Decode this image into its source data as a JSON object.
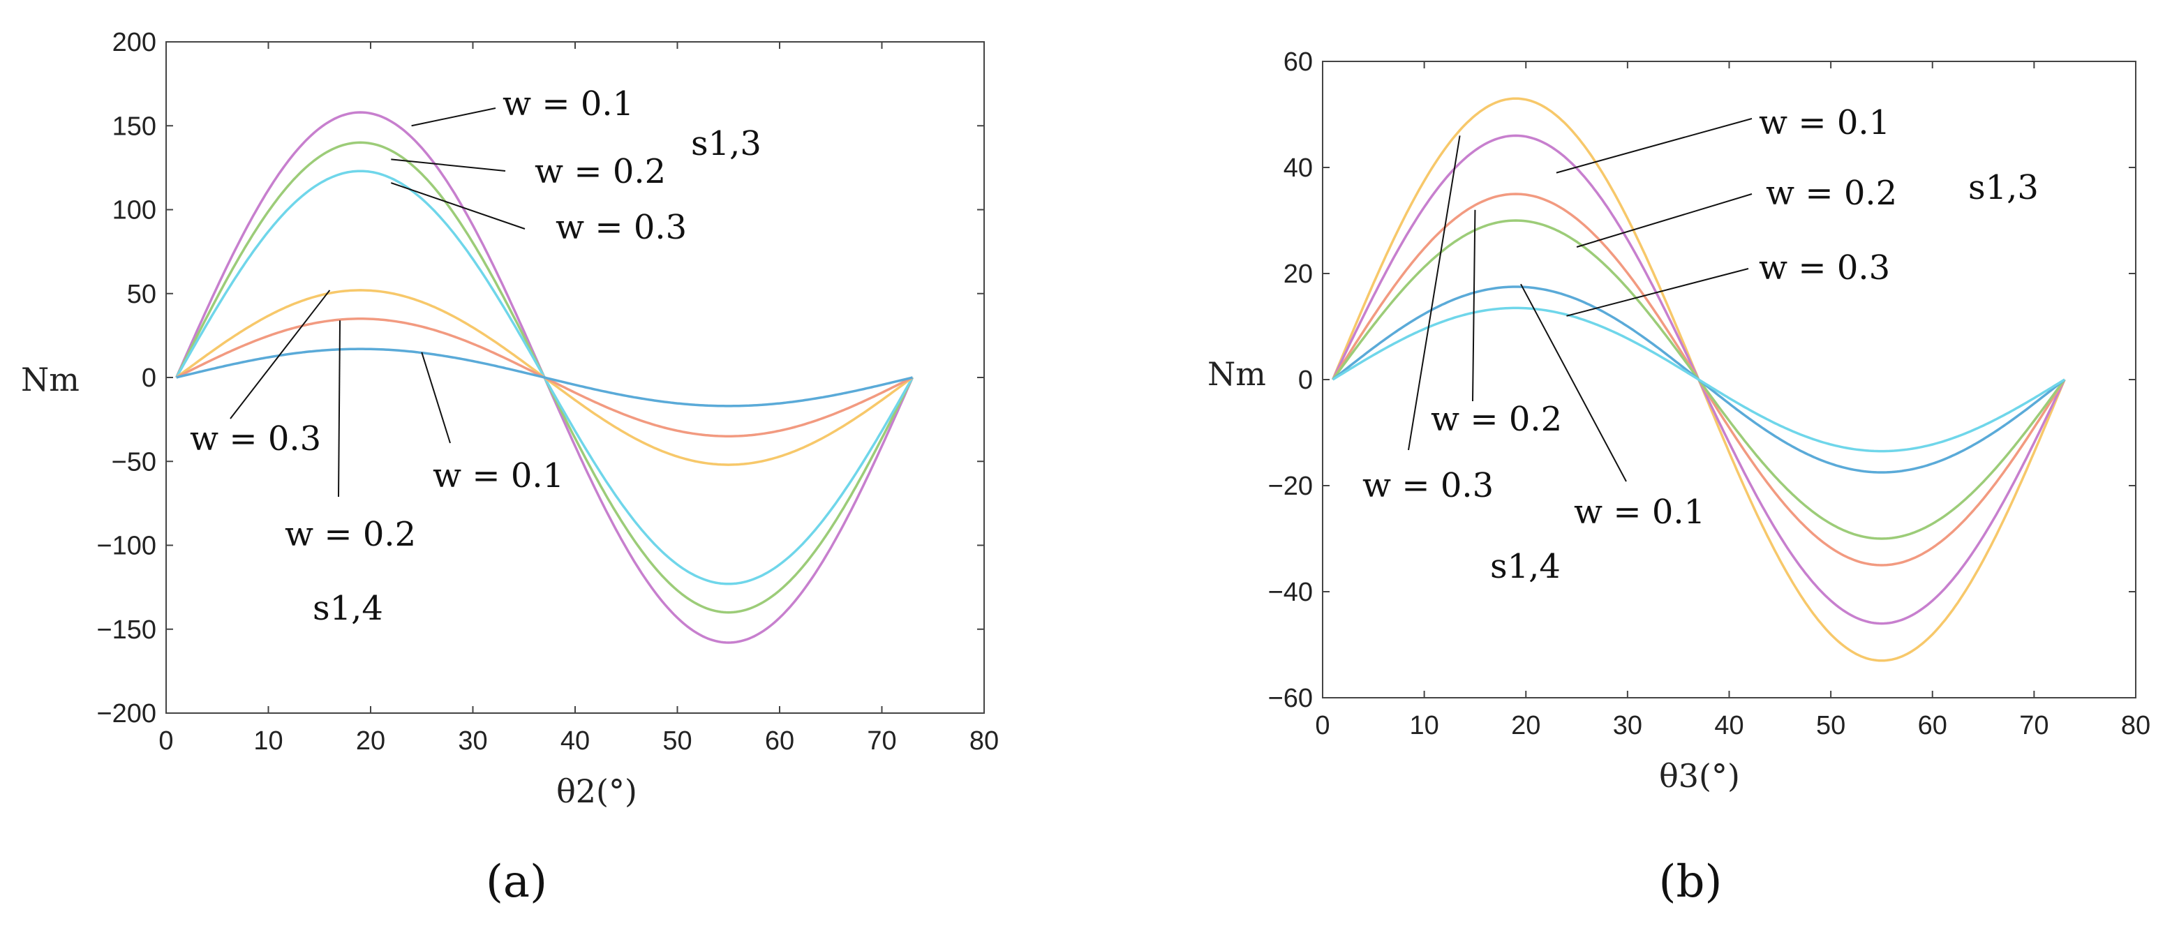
{
  "chart_data": [
    {
      "type": "line",
      "panel_label": "(a)",
      "xlabel": "θ2(°)",
      "ylabel": "Nm",
      "xlim": [
        0,
        80
      ],
      "ylim": [
        -200,
        200
      ],
      "x_ticks": [
        0,
        10,
        20,
        30,
        40,
        50,
        60,
        70,
        80
      ],
      "y_ticks": [
        200,
        150,
        100,
        50,
        0,
        -50,
        -100,
        -150,
        -200
      ],
      "x_tick_labels": [
        "0",
        "10",
        "20",
        "30",
        "40",
        "50",
        "60",
        "70",
        "80"
      ],
      "y_tick_labels": [
        "200",
        "150",
        "100",
        "50",
        "0",
        "−50",
        "−100",
        "−150",
        "−200"
      ],
      "x_range": [
        1,
        73
      ],
      "zero_cross": 37,
      "peak_x": 19,
      "trough_x": 55,
      "series": [
        {
          "name": "s1,3 w = 0.1",
          "amplitude": 158,
          "color": "#c77fce"
        },
        {
          "name": "s1,3 w = 0.2",
          "amplitude": 140,
          "color": "#9ccc78"
        },
        {
          "name": "s1,3 w = 0.3",
          "amplitude": 123,
          "color": "#6fd6ea"
        },
        {
          "name": "s1,4 w = 0.3",
          "amplitude": 52,
          "color": "#f7c86a"
        },
        {
          "name": "s1,4 w = 0.2",
          "amplitude": 35,
          "color": "#f29a80"
        },
        {
          "name": "s1,4 w = 0.1",
          "amplitude": 17,
          "color": "#5aaad8"
        }
      ],
      "annotations": [
        {
          "text": "w = 0.1",
          "group": "s1,3"
        },
        {
          "text": "w = 0.2",
          "group": "s1,3"
        },
        {
          "text": "w = 0.3",
          "group": "s1,3"
        },
        {
          "text": "w = 0.3",
          "group": "s1,4"
        },
        {
          "text": "w = 0.1",
          "group": "s1,4"
        },
        {
          "text": "w = 0.2",
          "group": "s1,4"
        }
      ],
      "group_labels": [
        "s1,3",
        "s1,4"
      ]
    },
    {
      "type": "line",
      "panel_label": "(b)",
      "xlabel": "θ3(°)",
      "ylabel": "Nm",
      "xlim": [
        0,
        80
      ],
      "ylim": [
        -60,
        60
      ],
      "x_ticks": [
        0,
        10,
        20,
        30,
        40,
        50,
        60,
        70,
        80
      ],
      "y_ticks": [
        60,
        40,
        20,
        0,
        -20,
        -40,
        -60
      ],
      "x_tick_labels": [
        "0",
        "10",
        "20",
        "30",
        "40",
        "50",
        "60",
        "70",
        "80"
      ],
      "y_tick_labels": [
        "60",
        "40",
        "20",
        "0",
        "−20",
        "−40",
        "−60"
      ],
      "x_range": [
        1,
        73
      ],
      "zero_cross": 37,
      "peak_x": 19,
      "trough_x": 55,
      "series": [
        {
          "name": "s1,4 w = 0.3",
          "amplitude": 53,
          "color": "#f7c86a"
        },
        {
          "name": "s1,3 w = 0.1",
          "amplitude": 46,
          "color": "#c77fce"
        },
        {
          "name": "s1,4 w = 0.2",
          "amplitude": 35,
          "color": "#f29a80"
        },
        {
          "name": "s1,3 w = 0.2",
          "amplitude": 30,
          "color": "#9ccc78"
        },
        {
          "name": "s1,4 w = 0.1",
          "amplitude": 17.5,
          "color": "#5aaad8"
        },
        {
          "name": "s1,3 w = 0.3",
          "amplitude": 13.5,
          "color": "#6fd6ea"
        }
      ],
      "annotations": [
        {
          "text": "w = 0.1",
          "group": "s1,3"
        },
        {
          "text": "w = 0.2",
          "group": "s1,3"
        },
        {
          "text": "w = 0.3",
          "group": "s1,3"
        },
        {
          "text": "w = 0.2",
          "group": "s1,4"
        },
        {
          "text": "w = 0.3",
          "group": "s1,4"
        },
        {
          "text": "w = 0.1",
          "group": "s1,4"
        }
      ],
      "group_labels": [
        "s1,3",
        "s1,4"
      ]
    }
  ]
}
